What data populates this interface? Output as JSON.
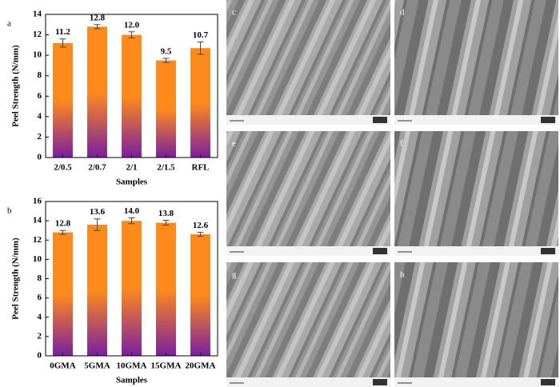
{
  "chart_data": [
    {
      "type": "bar",
      "panel": "a",
      "ylabel": "Peel Strength (N/mm)",
      "xlabel": "Samples",
      "categories": [
        "2/0.5",
        "2/0.7",
        "2/1",
        "2/1.5",
        "RFL"
      ],
      "values": [
        11.2,
        12.8,
        12.0,
        9.5,
        10.7
      ],
      "value_labels": [
        "11.2",
        "12.8",
        "12.0",
        "9.5",
        "10.7"
      ],
      "errors": [
        0.4,
        0.2,
        0.3,
        0.2,
        0.6
      ],
      "ylim": [
        0,
        14
      ],
      "yticks": [
        0,
        2,
        4,
        6,
        8,
        10,
        12,
        14
      ],
      "color_top": "#ff8a1c",
      "color_bottom": "#7a1fa0"
    },
    {
      "type": "bar",
      "panel": "b",
      "ylabel": "Peel Strength (N/mm)",
      "xlabel": "Samples",
      "categories": [
        "0GMA",
        "5GMA",
        "10GMA",
        "15GMA",
        "20GMA"
      ],
      "values": [
        12.8,
        13.6,
        14.0,
        13.8,
        12.6
      ],
      "value_labels": [
        "12.8",
        "13.6",
        "14.0",
        "13.8",
        "12.6"
      ],
      "errors": [
        0.2,
        0.6,
        0.3,
        0.25,
        0.2
      ],
      "ylim": [
        0,
        16
      ],
      "yticks": [
        0,
        2,
        4,
        6,
        8,
        10,
        12,
        14,
        16
      ],
      "color_top": "#ff8a1c",
      "color_bottom": "#7a1fa0"
    }
  ],
  "images": {
    "labels": [
      "c",
      "d",
      "e",
      "f",
      "g",
      "h"
    ]
  }
}
